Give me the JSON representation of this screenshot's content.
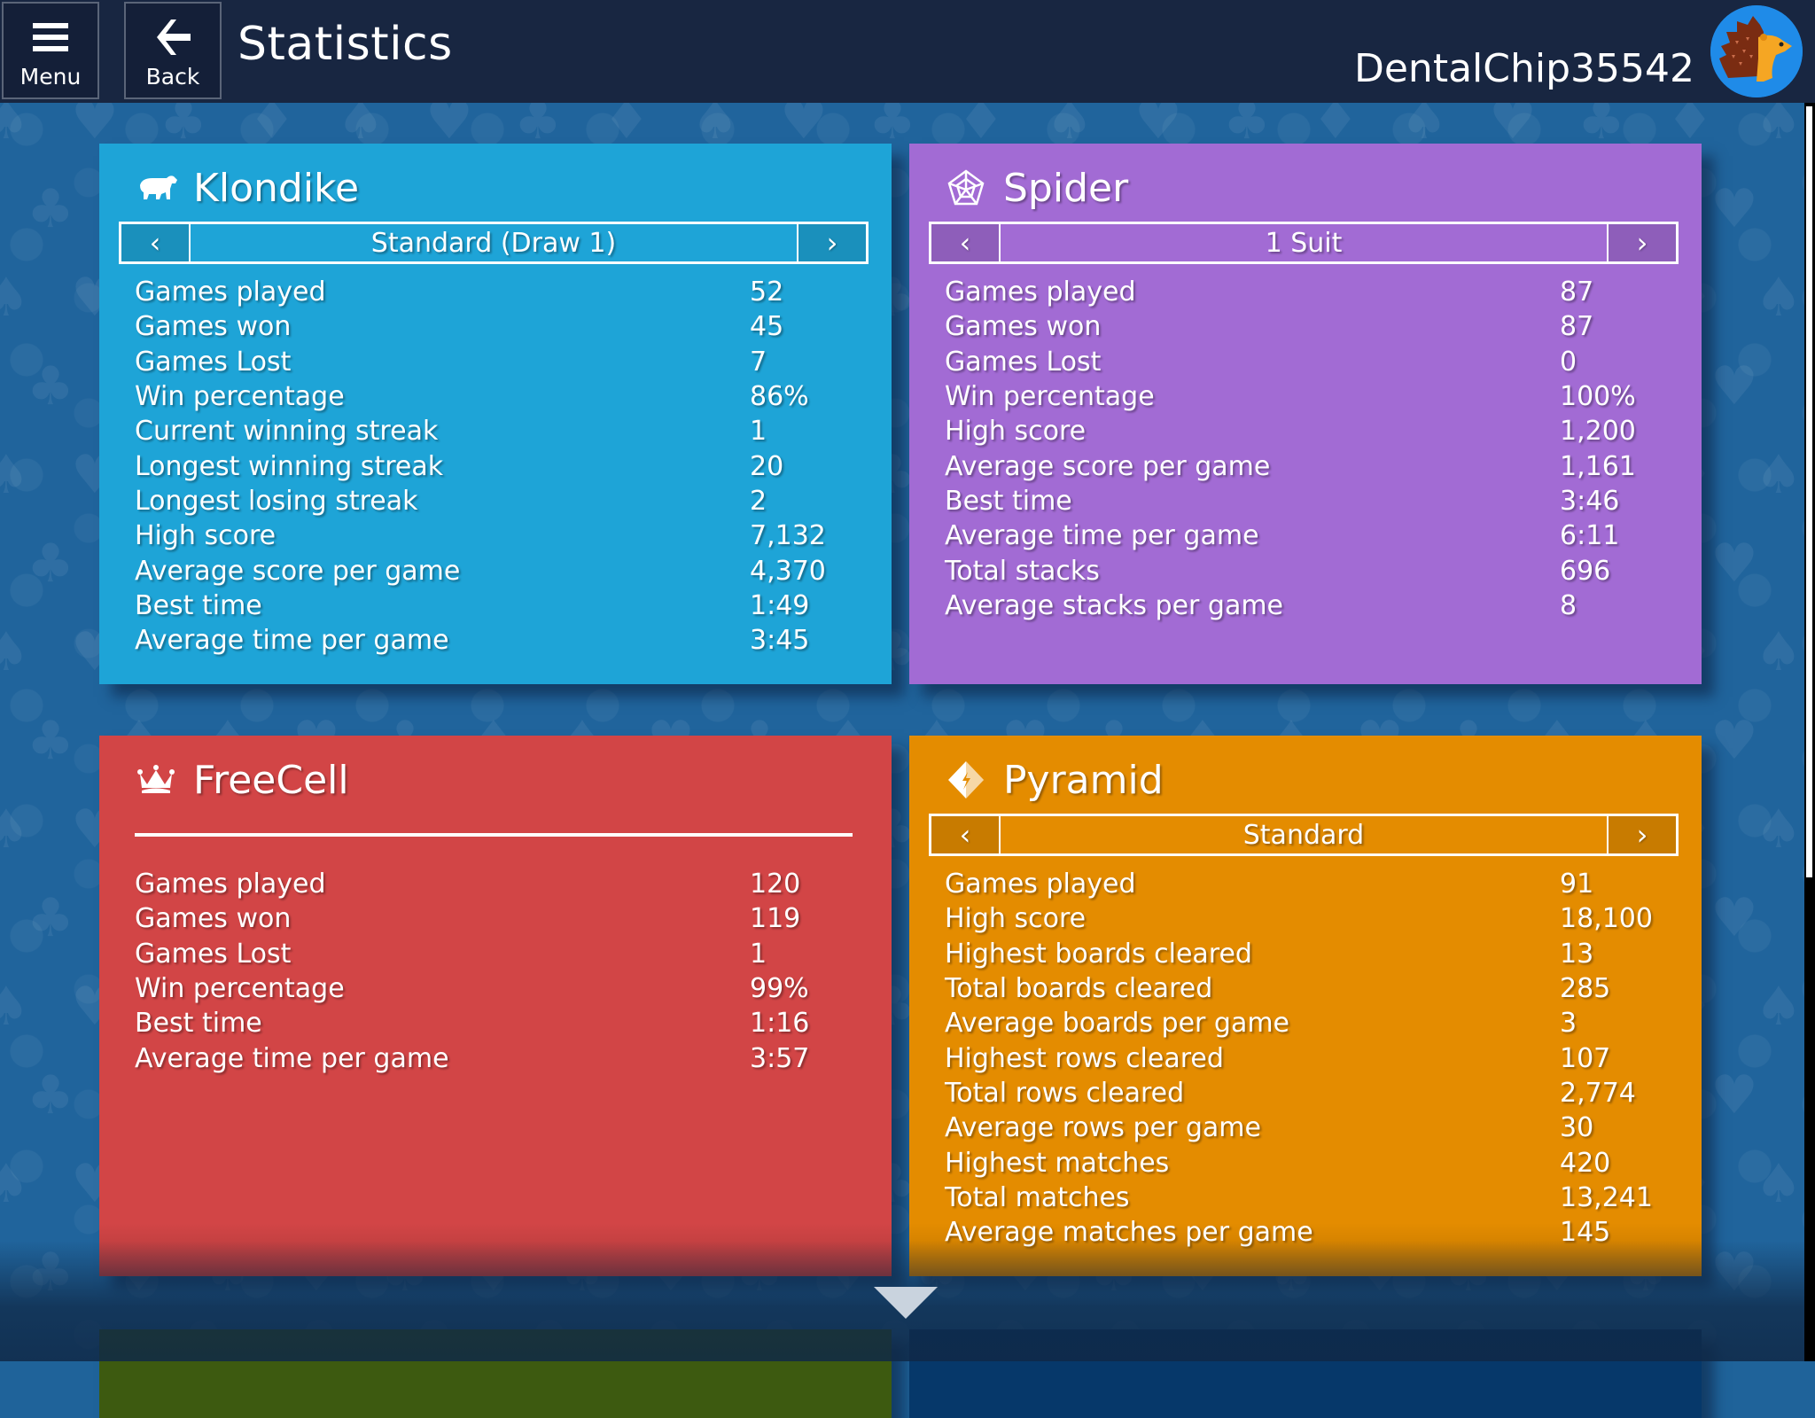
{
  "header": {
    "menu_label": "Menu",
    "back_label": "Back",
    "title": "Statistics",
    "username": "DentalChip35542",
    "avatar_icon": "hedgehog-avatar"
  },
  "colors": {
    "klondike": "#1ea4d7",
    "spider": "#a26bd4",
    "freecell": "#d24546",
    "pyramid": "#e48c00",
    "tripeaks": "#3d5a10",
    "daily_challenges": "#06386a",
    "header": "#182641",
    "background": "#20649c"
  },
  "cards": {
    "klondike": {
      "name": "Klondike",
      "icon": "polar-bear-icon",
      "mode": "Standard (Draw 1)",
      "prev_label": "‹",
      "next_label": "›",
      "stats": [
        {
          "label": "Games played",
          "value": "52"
        },
        {
          "label": "Games won",
          "value": "45"
        },
        {
          "label": "Games Lost",
          "value": "7"
        },
        {
          "label": "Win percentage",
          "value": "86%"
        },
        {
          "label": "Current winning streak",
          "value": "1"
        },
        {
          "label": "Longest winning streak",
          "value": "20"
        },
        {
          "label": "Longest losing streak",
          "value": "2"
        },
        {
          "label": "High score",
          "value": "7,132"
        },
        {
          "label": "Average score per game",
          "value": "4,370"
        },
        {
          "label": "Best time",
          "value": "1:49"
        },
        {
          "label": "Average time per game",
          "value": "3:45"
        }
      ]
    },
    "spider": {
      "name": "Spider",
      "icon": "spider-web-icon",
      "mode": "1 Suit",
      "prev_label": "‹",
      "next_label": "›",
      "stats": [
        {
          "label": "Games played",
          "value": "87"
        },
        {
          "label": "Games won",
          "value": "87"
        },
        {
          "label": "Games Lost",
          "value": "0"
        },
        {
          "label": "Win percentage",
          "value": "100%"
        },
        {
          "label": "High score",
          "value": "1,200"
        },
        {
          "label": "Average score per game",
          "value": "1,161"
        },
        {
          "label": "Best time",
          "value": "3:46"
        },
        {
          "label": "Average time per game",
          "value": "6:11"
        },
        {
          "label": "Total stacks",
          "value": "696"
        },
        {
          "label": "Average stacks per game",
          "value": "8"
        }
      ]
    },
    "freecell": {
      "name": "FreeCell",
      "icon": "crown-icon",
      "stats": [
        {
          "label": "Games played",
          "value": "120"
        },
        {
          "label": "Games won",
          "value": "119"
        },
        {
          "label": "Games Lost",
          "value": "1"
        },
        {
          "label": "Win percentage",
          "value": "99%"
        },
        {
          "label": "Best time",
          "value": "1:16"
        },
        {
          "label": "Average time per game",
          "value": "3:57"
        }
      ]
    },
    "pyramid": {
      "name": "Pyramid",
      "icon": "pyramid-diamond-icon",
      "mode": "Standard",
      "prev_label": "‹",
      "next_label": "›",
      "stats": [
        {
          "label": "Games played",
          "value": "91"
        },
        {
          "label": "High score",
          "value": "18,100"
        },
        {
          "label": "Highest boards cleared",
          "value": "13"
        },
        {
          "label": "Total boards cleared",
          "value": "285"
        },
        {
          "label": "Average boards per game",
          "value": "3"
        },
        {
          "label": "Highest rows cleared",
          "value": "107"
        },
        {
          "label": "Total rows cleared",
          "value": "2,774"
        },
        {
          "label": "Average rows per game",
          "value": "30"
        },
        {
          "label": "Highest matches",
          "value": "420"
        },
        {
          "label": "Total matches",
          "value": "13,241"
        },
        {
          "label": "Average matches per game",
          "value": "145"
        }
      ]
    }
  }
}
